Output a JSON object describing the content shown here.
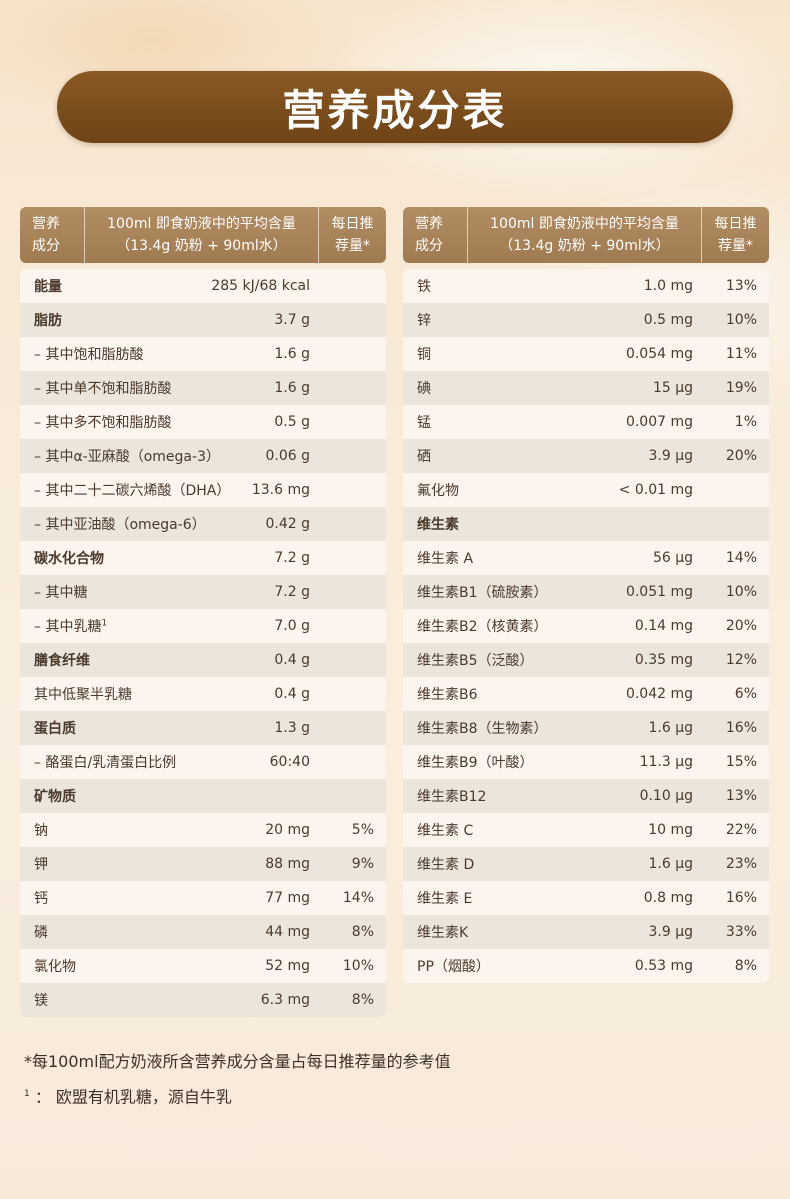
{
  "title": "营养成分表",
  "header": {
    "col1_line1": "营养",
    "col1_line2": "成分",
    "col2_line1": "100ml 即食奶液中的平均含量",
    "col2_line2": "（13.4g 奶粉 + 90ml水）",
    "col3_line1": "每日推",
    "col3_line2": "荐量*"
  },
  "left_rows": [
    {
      "name": "能量",
      "value": "285 kJ/68 kcal",
      "pct": "",
      "bold": true
    },
    {
      "name": "脂肪",
      "value": "3.7 g",
      "pct": "",
      "bold": true
    },
    {
      "name": "– 其中饱和脂肪酸",
      "value": "1.6 g",
      "pct": ""
    },
    {
      "name": "– 其中单不饱和脂肪酸",
      "value": "1.6 g",
      "pct": ""
    },
    {
      "name": "– 其中多不饱和脂肪酸",
      "value": "0.5 g",
      "pct": ""
    },
    {
      "name": "– 其中α-亚麻酸（omega-3）",
      "value": "0.06 g",
      "pct": ""
    },
    {
      "name": "– 其中二十二碳六烯酸（DHA）",
      "value": "13.6 mg",
      "pct": ""
    },
    {
      "name": "– 其中亚油酸（omega-6）",
      "value": "0.42 g",
      "pct": ""
    },
    {
      "name": "碳水化合物",
      "value": "7.2 g",
      "pct": "",
      "bold": true
    },
    {
      "name": "– 其中糖",
      "value": "7.2 g",
      "pct": ""
    },
    {
      "name": "– 其中乳糖",
      "sup": "1",
      "value": "7.0 g",
      "pct": ""
    },
    {
      "name": "膳食纤维",
      "value": "0.4 g",
      "pct": "",
      "bold": true
    },
    {
      "name": "其中低聚半乳糖",
      "value": "0.4 g",
      "pct": ""
    },
    {
      "name": "蛋白质",
      "value": "1.3 g",
      "pct": "",
      "bold": true
    },
    {
      "name": "– 酪蛋白/乳清蛋白比例",
      "value": "60:40",
      "pct": ""
    },
    {
      "name": "矿物质",
      "value": "",
      "pct": "",
      "bold": true
    },
    {
      "name": "钠",
      "value": "20 mg",
      "pct": "5%"
    },
    {
      "name": "钾",
      "value": "88 mg",
      "pct": "9%"
    },
    {
      "name": "钙",
      "value": "77 mg",
      "pct": "14%"
    },
    {
      "name": "磷",
      "value": "44 mg",
      "pct": "8%"
    },
    {
      "name": "氯化物",
      "value": "52 mg",
      "pct": "10%"
    },
    {
      "name": "镁",
      "value": "6.3 mg",
      "pct": "8%"
    }
  ],
  "right_rows": [
    {
      "name": "铁",
      "value": "1.0 mg",
      "pct": "13%"
    },
    {
      "name": "锌",
      "value": "0.5 mg",
      "pct": "10%"
    },
    {
      "name": "铜",
      "value": "0.054 mg",
      "pct": "11%"
    },
    {
      "name": "碘",
      "value": "15 μg",
      "pct": "19%"
    },
    {
      "name": "锰",
      "value": "0.007 mg",
      "pct": "1%"
    },
    {
      "name": "硒",
      "value": "3.9 μg",
      "pct": "20%"
    },
    {
      "name": "氟化物",
      "value": "< 0.01 mg",
      "pct": ""
    },
    {
      "name": "维生素",
      "value": "",
      "pct": "",
      "bold": true
    },
    {
      "name": "维生素 A",
      "value": "56 μg",
      "pct": "14%"
    },
    {
      "name": "维生素B1（硫胺素）",
      "value": "0.051 mg",
      "pct": "10%"
    },
    {
      "name": "维生素B2（核黄素）",
      "value": "0.14 mg",
      "pct": "20%"
    },
    {
      "name": "维生素B5（泛酸）",
      "value": "0.35 mg",
      "pct": "12%"
    },
    {
      "name": "维生素B6",
      "value": "0.042 mg",
      "pct": "6%"
    },
    {
      "name": "维生素B8（生物素）",
      "value": "1.6 μg",
      "pct": "16%"
    },
    {
      "name": "维生素B9（叶酸）",
      "value": "11.3 μg",
      "pct": "15%"
    },
    {
      "name": "维生素B12",
      "value": "0.10 μg",
      "pct": "13%"
    },
    {
      "name": "维生素 C",
      "value": "10 mg",
      "pct": "22%"
    },
    {
      "name": "维生素 D",
      "value": "1.6 μg",
      "pct": "23%"
    },
    {
      "name": "维生素 E",
      "value": "0.8 mg",
      "pct": "16%"
    },
    {
      "name": "维生素K",
      "value": "3.9 μg",
      "pct": "33%"
    },
    {
      "name": "PP（烟酸）",
      "value": "0.53 mg",
      "pct": "8%"
    }
  ],
  "footnotes": {
    "note1": "*每100ml配方奶液所含营养成分含量占每日推荐量的参考值",
    "note2_marker": "1",
    "note2_text": "：  欧盟有机乳糖，源自牛乳"
  }
}
